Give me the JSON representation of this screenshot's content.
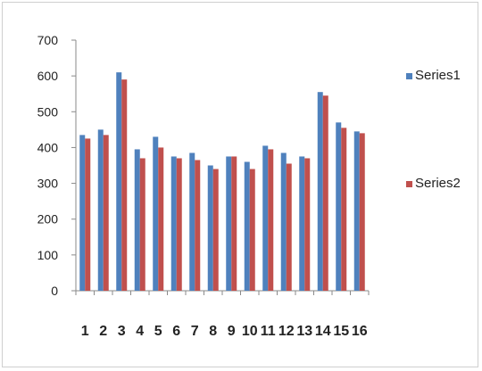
{
  "chart_data": {
    "type": "bar",
    "title": "",
    "xlabel": "",
    "ylabel": "",
    "categories": [
      "1",
      "2",
      "3",
      "4",
      "5",
      "6",
      "7",
      "8",
      "9",
      "10",
      "11",
      "12",
      "13",
      "14",
      "15",
      "16"
    ],
    "ylim": [
      0,
      700
    ],
    "yticks": [
      0,
      100,
      200,
      300,
      400,
      500,
      600,
      700
    ],
    "grid": false,
    "legend_position": "right",
    "series": [
      {
        "name": "Series1",
        "color": "#4f81bd",
        "values": [
          435,
          450,
          610,
          395,
          430,
          375,
          385,
          350,
          375,
          360,
          405,
          385,
          375,
          555,
          470,
          445
        ]
      },
      {
        "name": "Series2",
        "color": "#c0504d",
        "values": [
          425,
          435,
          590,
          370,
          400,
          370,
          365,
          340,
          375,
          340,
          395,
          355,
          370,
          545,
          455,
          440
        ]
      }
    ]
  }
}
